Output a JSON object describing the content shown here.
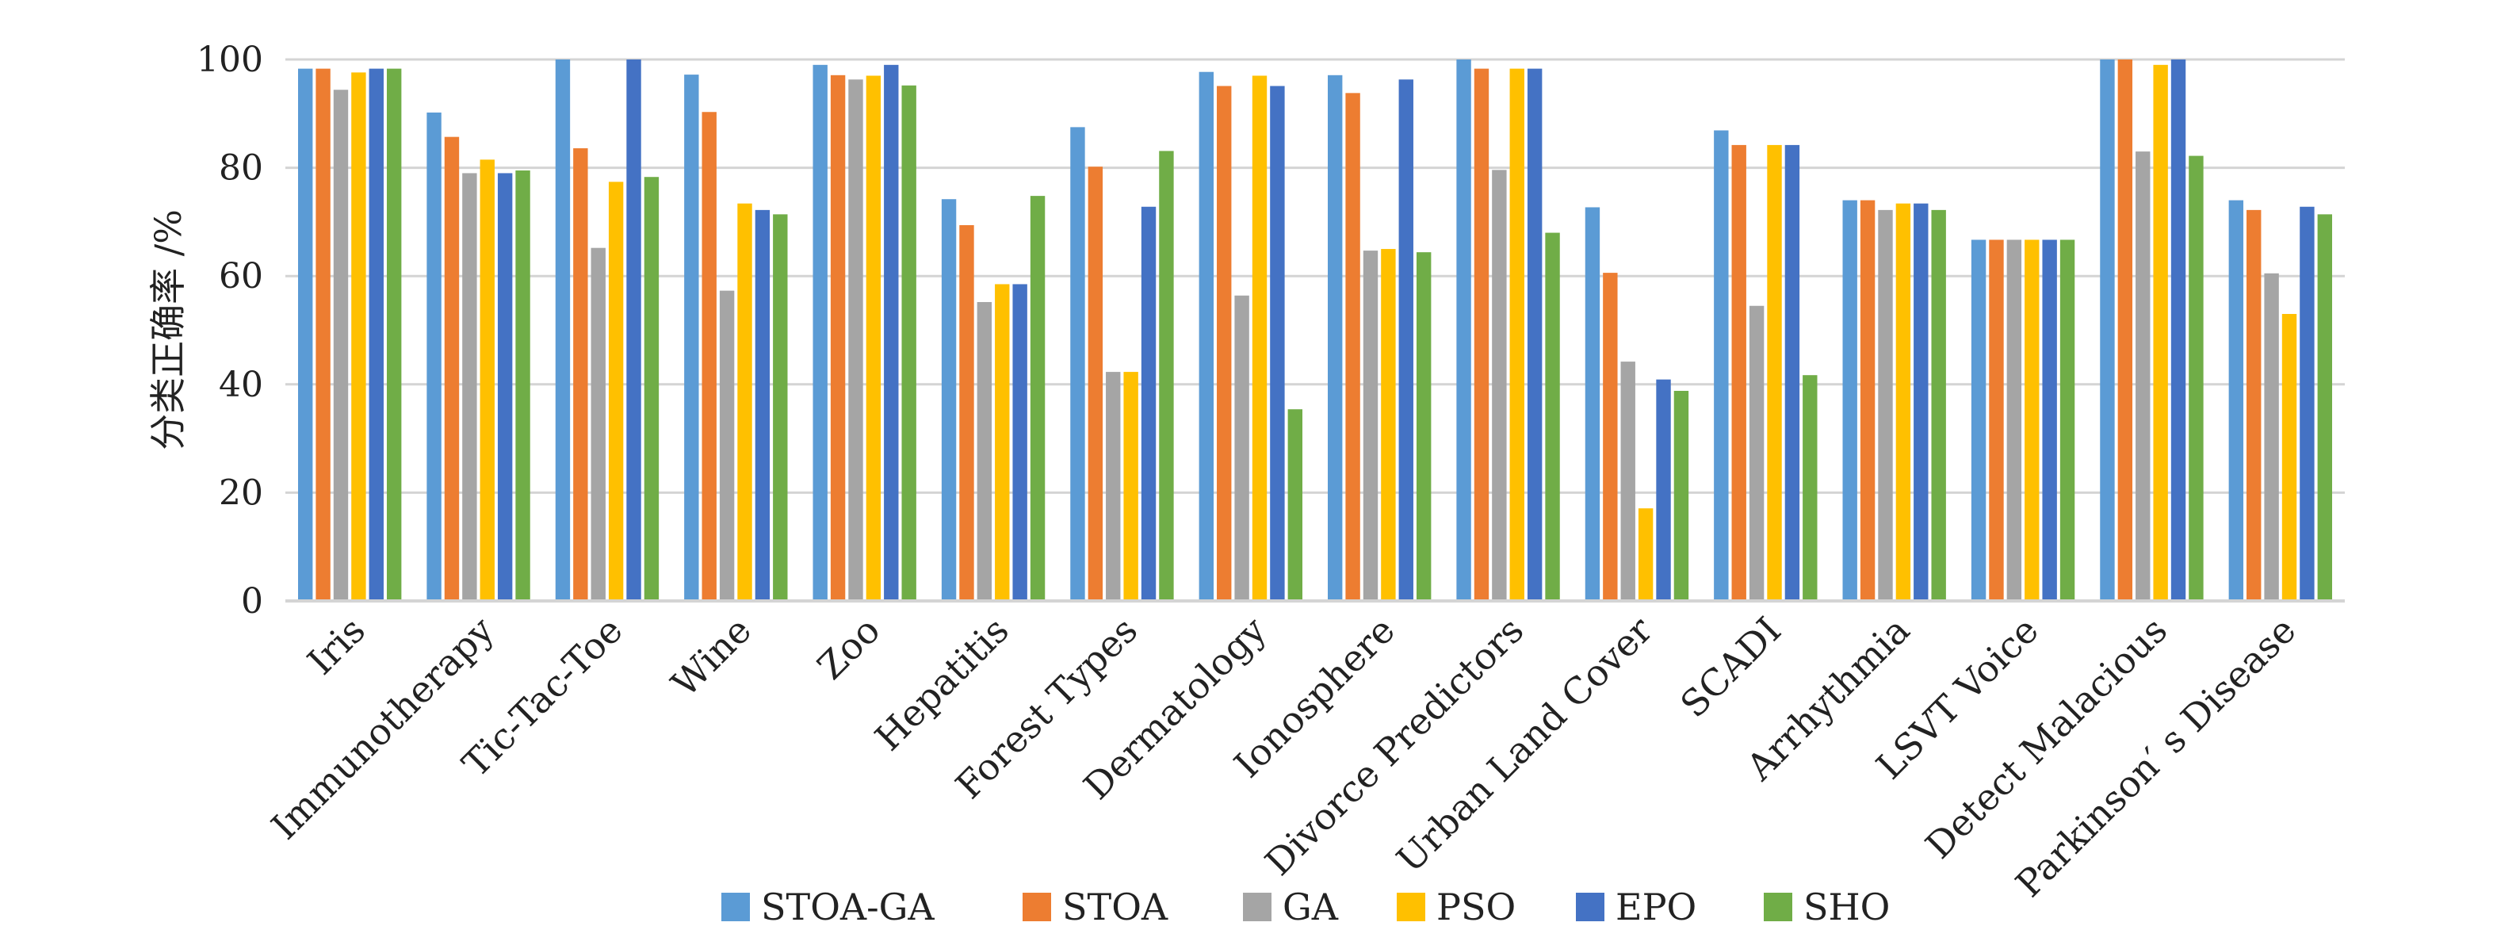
{
  "chart_data": {
    "type": "bar",
    "ylabel": "分类正确率 /%",
    "ylim": [
      0,
      100
    ],
    "yticks": [
      0,
      20,
      40,
      60,
      80,
      100
    ],
    "grid": true,
    "legend_position": "bottom",
    "categories": [
      "Iris",
      "Immunotherapy",
      "Tic-Tac-Toe",
      "Wine",
      "Zoo",
      "Hepatitis",
      "Forest Types",
      "Dermatology",
      "Ionosphere",
      "Divorce Predictors",
      "Urban Land Cover",
      "SCADI",
      "Arrhythmia",
      "LSVT Voice",
      "Detect Malacious",
      "Parkinson′ s Disease"
    ],
    "series": [
      {
        "name": "STOA-GA",
        "color": "#5b9bd5",
        "values": [
          98.3,
          90.2,
          100,
          97.2,
          99.0,
          74.2,
          87.5,
          97.7,
          97.1,
          100,
          72.7,
          86.9,
          74.0,
          66.7,
          100,
          74.0
        ]
      },
      {
        "name": "STOA",
        "color": "#ed7d31",
        "values": [
          98.3,
          85.7,
          83.6,
          90.3,
          97.1,
          69.4,
          80.2,
          95.1,
          93.8,
          98.3,
          60.6,
          84.2,
          74.0,
          66.7,
          100,
          72.2
        ]
      },
      {
        "name": "GA",
        "color": "#a5a5a5",
        "values": [
          94.4,
          79.0,
          65.2,
          57.3,
          96.3,
          55.2,
          42.3,
          56.4,
          64.7,
          79.6,
          44.2,
          54.5,
          72.2,
          66.7,
          83.0,
          60.5
        ]
      },
      {
        "name": "PSO",
        "color": "#ffc000",
        "values": [
          97.6,
          81.5,
          77.4,
          73.4,
          97.0,
          58.5,
          42.3,
          97.0,
          65.0,
          98.3,
          17.1,
          84.2,
          73.4,
          66.7,
          99.0,
          53.0
        ]
      },
      {
        "name": "EPO",
        "color": "#4472c4",
        "values": [
          98.3,
          79.0,
          100,
          72.2,
          99.0,
          58.5,
          72.8,
          95.1,
          96.3,
          98.3,
          40.9,
          84.2,
          73.4,
          66.7,
          100,
          72.8
        ]
      },
      {
        "name": "SHO",
        "color": "#70ad47",
        "values": [
          98.3,
          79.5,
          78.3,
          71.4,
          95.2,
          74.8,
          83.1,
          35.4,
          64.4,
          68.0,
          38.8,
          41.7,
          72.2,
          66.7,
          82.2,
          71.4
        ]
      }
    ]
  }
}
